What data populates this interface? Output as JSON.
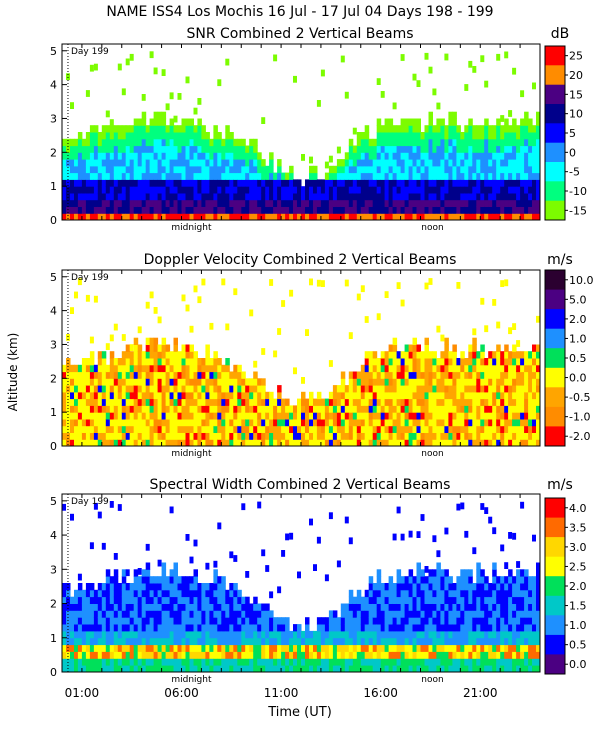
{
  "figure_title": "NAME ISS4 Los Mochis  16 Jul - 17 Jul 04 Days 198 - 199",
  "ylabel": "Altitude (km)",
  "xlabel": "Time (UT)",
  "x_ticks": [
    "01:00",
    "06:00",
    "11:00",
    "16:00",
    "21:00"
  ],
  "y_ticks": [
    "0",
    "1",
    "2",
    "3",
    "4",
    "5"
  ],
  "day_marker": "Day 199",
  "midnight_label": "midnight",
  "noon_label": "noon",
  "chart_data": [
    {
      "type": "heatmap",
      "title": "SNR Combined 2 Vertical Beams",
      "unit": "dB",
      "ylim": [
        0,
        5.2
      ],
      "xlim": [
        0,
        24
      ],
      "colorbar_ticks": [
        "25",
        "20",
        "15",
        "10",
        "5",
        "0",
        "-5",
        "-10",
        "-15"
      ],
      "colors": [
        "#ff0000",
        "#ff8c00",
        "#4b0082",
        "#00008b",
        "#0000ff",
        "#1e90ff",
        "#00ffff",
        "#00ff7f",
        "#7cfc00"
      ]
    },
    {
      "type": "heatmap",
      "title": "Doppler Velocity Combined 2 Vertical Beams",
      "unit": "m/s",
      "ylim": [
        0,
        5.2
      ],
      "xlim": [
        0,
        24
      ],
      "colorbar_ticks": [
        "10.0",
        "5.0",
        "2.0",
        "1.0",
        "0.5",
        "0.0",
        "-0.5",
        "-1.0",
        "-2.0"
      ],
      "colors": [
        "#2b0030",
        "#4b0082",
        "#0000ff",
        "#1e90ff",
        "#00e05a",
        "#ffff00",
        "#ffa500",
        "#ff8c00",
        "#ff0000"
      ]
    },
    {
      "type": "heatmap",
      "title": "Spectral Width Combined 2 Vertical Beams",
      "unit": "m/s",
      "ylim": [
        0,
        5.2
      ],
      "xlim": [
        0,
        24
      ],
      "colorbar_ticks": [
        "4.0",
        "3.5",
        "3.0",
        "2.5",
        "2.0",
        "1.5",
        "1.0",
        "0.5",
        "0.0"
      ],
      "colors": [
        "#ff0000",
        "#ff6a00",
        "#ffd700",
        "#ffff00",
        "#00e05a",
        "#00c8c8",
        "#1e90ff",
        "#0000ff",
        "#4b0082"
      ]
    }
  ]
}
